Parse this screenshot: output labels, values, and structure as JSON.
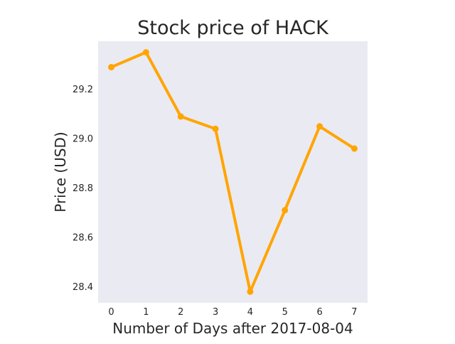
{
  "chart_data": {
    "type": "line",
    "title": "Stock price of HACK",
    "xlabel": "Number of Days after 2017-08-04",
    "ylabel": "Price (USD)",
    "x": [
      0,
      1,
      2,
      3,
      4,
      5,
      6,
      7
    ],
    "series": [
      {
        "values": [
          29.29,
          29.35,
          29.09,
          29.04,
          28.38,
          28.71,
          29.05,
          28.96
        ],
        "color": "#ffa500"
      }
    ],
    "xlim": [
      -0.38,
      7.38
    ],
    "ylim": [
      28.335,
      29.395
    ],
    "xticks": [
      "0",
      "1",
      "2",
      "3",
      "4",
      "5",
      "6",
      "7"
    ],
    "yticks": [
      "28.4",
      "28.6",
      "28.8",
      "29.0",
      "29.2"
    ],
    "ytick_values": [
      28.4,
      28.6,
      28.8,
      29.0,
      29.2
    ],
    "grid": false,
    "background": "#eaeaf2"
  }
}
